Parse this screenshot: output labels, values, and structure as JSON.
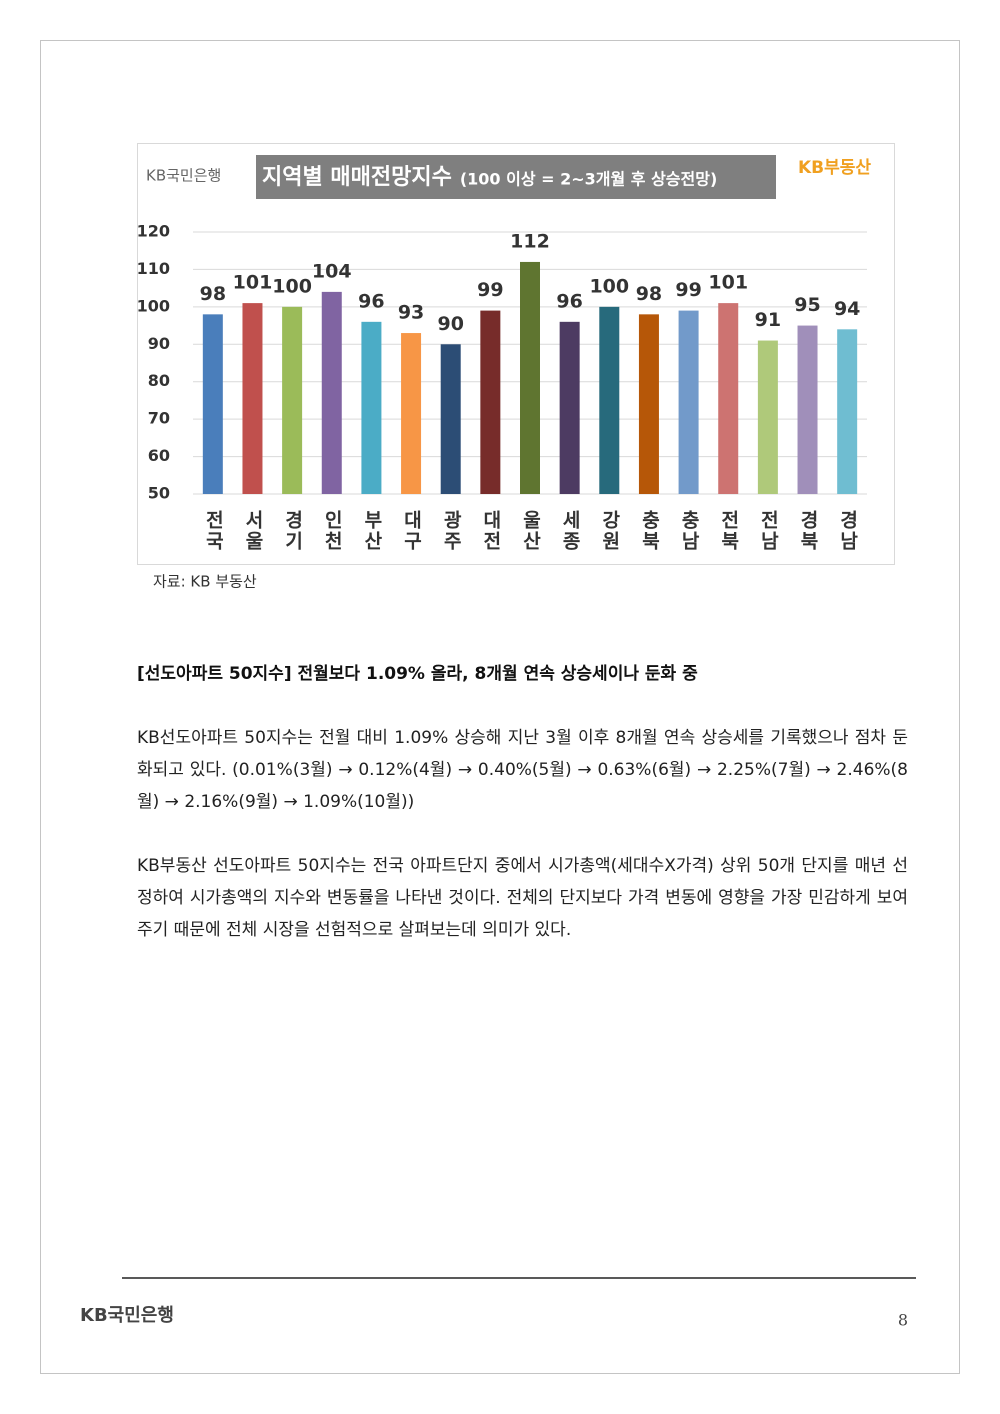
{
  "chart_data": {
    "type": "bar",
    "title": "지역별 매매전망지수",
    "subtitle": "(100 이상 = 2~3개월 후 상승전망)",
    "brand_left": "KB국민은행",
    "brand_right": "KB부동산",
    "source": "자료: KB 부동산",
    "categories": [
      "전국",
      "서울",
      "경기",
      "인천",
      "부산",
      "대구",
      "광주",
      "대전",
      "울산",
      "세종",
      "강원",
      "충북",
      "충남",
      "전북",
      "전남",
      "경북",
      "경남"
    ],
    "values": [
      98,
      101,
      100,
      104,
      96,
      93,
      90,
      99,
      112,
      96,
      100,
      98,
      99,
      101,
      91,
      95,
      94
    ],
    "colors": [
      "#4a7ebb",
      "#c0504d",
      "#9bbb59",
      "#8064a2",
      "#4bacc6",
      "#f79646",
      "#2c4d75",
      "#772c2a",
      "#5f7530",
      "#4d3b62",
      "#276a7c",
      "#b65708",
      "#729aca",
      "#cd7371",
      "#afc97a",
      "#a08fba",
      "#6fbdd1"
    ],
    "ylim": [
      50,
      120
    ],
    "yticks": [
      50,
      60,
      70,
      80,
      90,
      100,
      110,
      120
    ],
    "grid": true
  },
  "document": {
    "heading": "[선도아파트 50지수] 전월보다 1.09% 올라, 8개월 연속 상승세이나 둔화 중",
    "paragraphs": [
      "KB선도아파트 50지수는 전월 대비 1.09% 상승해 지난 3월 이후 8개월 연속 상승세를 기록했으나 점차 둔화되고 있다. (0.01%(3월) → 0.12%(4월) → 0.40%(5월) → 0.63%(6월) → 2.25%(7월) → 2.46%(8월) → 2.16%(9월) → 1.09%(10월))",
      "KB부동산 선도아파트 50지수는 전국 아파트단지 중에서 시가총액(세대수X가격) 상위 50개 단지를 매년 선정하여 시가총액의 지수와 변동률을 나타낸 것이다. 전체의 단지보다 가격 변동에 영향을 가장 민감하게 보여주기 때문에 전체 시장을 선험적으로 살펴보는데 의미가 있다."
    ],
    "footer_logo": "KB국민은행",
    "page_number": "8"
  }
}
